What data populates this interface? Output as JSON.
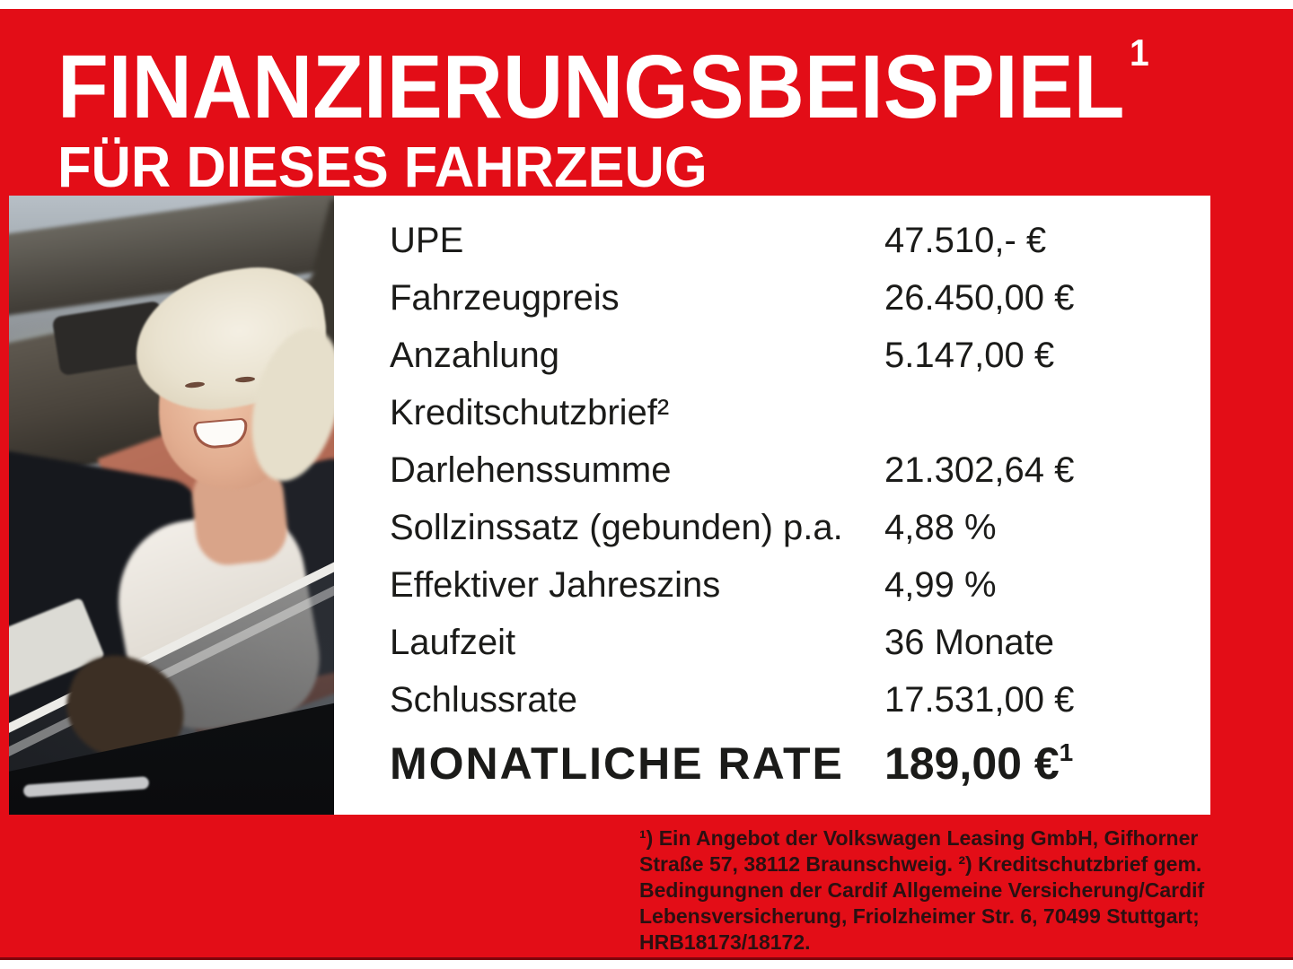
{
  "header": {
    "title": "FINANZIERUNGSBEISPIEL",
    "title_sup": "1",
    "subtitle": "FÜR DIESES FAHRZEUG"
  },
  "table": {
    "rows": [
      {
        "label": "UPE",
        "value": "47.510,- €"
      },
      {
        "label": "Fahrzeugpreis",
        "value": "26.450,00 €"
      },
      {
        "label": "Anzahlung",
        "value": "5.147,00 €"
      },
      {
        "label": "Kreditschutzbrief²",
        "value": ""
      },
      {
        "label": "Darlehenssumme",
        "value": "21.302,64 €"
      },
      {
        "label": "Sollzinssatz (gebunden) p.a.",
        "value": "4,88 %"
      },
      {
        "label": "Effektiver Jahreszins",
        "value": "4,99 %"
      },
      {
        "label": "Laufzeit",
        "value": "36 Monate"
      },
      {
        "label": "Schlussrate",
        "value": "17.531,00 €"
      }
    ],
    "highlight": {
      "label": "MONATLICHE RATE",
      "value": "189,00 €",
      "value_sup": "1"
    }
  },
  "footnote": {
    "lines": [
      "¹) Ein Angebot der Volkswagen Leasing GmbH, Gifhorner",
      "Straße 57, 38112 Braunschweig. ²) Kreditschutzbrief gem.",
      "Bedingungnen der Cardif Allgemeine Versicherung/Cardif",
      "Lebensversicherung, Friolzheimer Str. 6, 70499 Stuttgart;",
      "HRB18173/18172."
    ]
  },
  "photo": {
    "alt": "Smiling woman with short blonde hair sitting in a car with the door open"
  },
  "colors": {
    "accent_red": "#e30d17",
    "headline_white": "#ffffff",
    "table_text": "#1b1b19",
    "footnote_text": "#2b1011",
    "panel_white": "#ffffff"
  }
}
